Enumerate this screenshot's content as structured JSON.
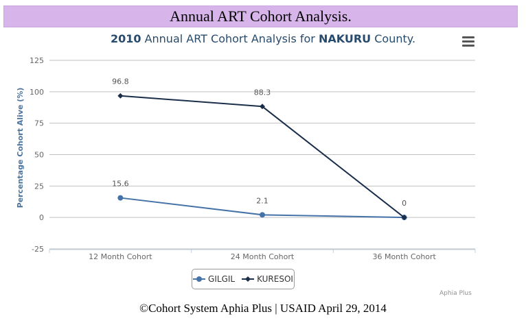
{
  "banner": {
    "title": "Annual ART Cohort Analysis."
  },
  "header": {
    "year": "2010",
    "middle": " Annual ART Cohort Analysis for ",
    "county": "NAKURU",
    "suffix": " County."
  },
  "footer": {
    "text": "©Cohort System Aphia Plus | USAID April 29, 2014"
  },
  "credits": "Aphia Plus",
  "menu_icon": "hamburger-menu-icon",
  "chart_data": {
    "type": "line",
    "title": "2010 Annual ART Cohort Analysis for NAKURU County.",
    "xlabel": "",
    "ylabel": "Percentage Cohort Alive (%)",
    "categories": [
      "12 Month Cohort",
      "24 Month Cohort",
      "36 Month Cohort"
    ],
    "ylim": [
      -25,
      125
    ],
    "yticks": [
      -25,
      0,
      25,
      50,
      75,
      100,
      125
    ],
    "grid": true,
    "legend_position": "bottom-center",
    "series": [
      {
        "name": "GILGIL",
        "values": [
          15.6,
          2.1,
          0
        ],
        "color": "#4572a7",
        "marker": "circle",
        "labels": [
          "15.6",
          "2.1",
          ""
        ]
      },
      {
        "name": "KURESOI",
        "values": [
          96.8,
          88.3,
          0
        ],
        "color": "#1a2e4a",
        "marker": "diamond",
        "labels": [
          "96.8",
          "88.3",
          "0"
        ]
      }
    ]
  }
}
